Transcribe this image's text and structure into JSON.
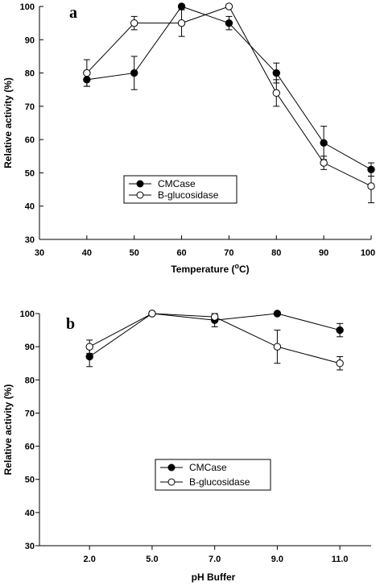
{
  "chart_data": [
    {
      "type": "line",
      "panel_label": "a",
      "x": [
        40,
        50,
        60,
        70,
        80,
        90,
        100
      ],
      "xlabel": "Temperature (°C)",
      "ylabel": "Relative activity (%)",
      "xlim": [
        30,
        100
      ],
      "ylim": [
        30,
        100
      ],
      "xticks": [
        30,
        40,
        50,
        60,
        70,
        80,
        90,
        100
      ],
      "yticks": [
        30,
        40,
        50,
        60,
        70,
        80,
        90,
        100
      ],
      "grid": false,
      "legend_position": "center-left",
      "series": [
        {
          "name": "CMCase",
          "marker": "filled-circle",
          "values": [
            78,
            80,
            100,
            95,
            80,
            59,
            51
          ],
          "errors": [
            2,
            5,
            0,
            2,
            3,
            5,
            2
          ]
        },
        {
          "name": "B-glucosidase",
          "marker": "open-circle",
          "values": [
            80,
            95,
            95,
            100,
            74,
            53,
            46
          ],
          "errors": [
            4,
            2,
            4,
            0,
            4,
            2,
            5
          ]
        }
      ]
    },
    {
      "type": "line",
      "panel_label": "b",
      "categories": [
        "2.0",
        "5.0",
        "7.0",
        "9.0",
        "11.0"
      ],
      "xlabel": "pH Buffer",
      "ylabel": "Relative activity (%)",
      "ylim": [
        30,
        100
      ],
      "yticks": [
        30,
        40,
        50,
        60,
        70,
        80,
        90,
        100
      ],
      "grid": false,
      "legend_position": "center-left",
      "series": [
        {
          "name": "CMCase",
          "marker": "filled-circle",
          "values": [
            87,
            100,
            98,
            100,
            95
          ],
          "errors": [
            3,
            0,
            2,
            0,
            2
          ]
        },
        {
          "name": "B-glucosidase",
          "marker": "open-circle",
          "values": [
            90,
            100,
            99,
            90,
            85
          ],
          "errors": [
            2,
            0,
            1,
            5,
            2
          ]
        }
      ]
    }
  ]
}
